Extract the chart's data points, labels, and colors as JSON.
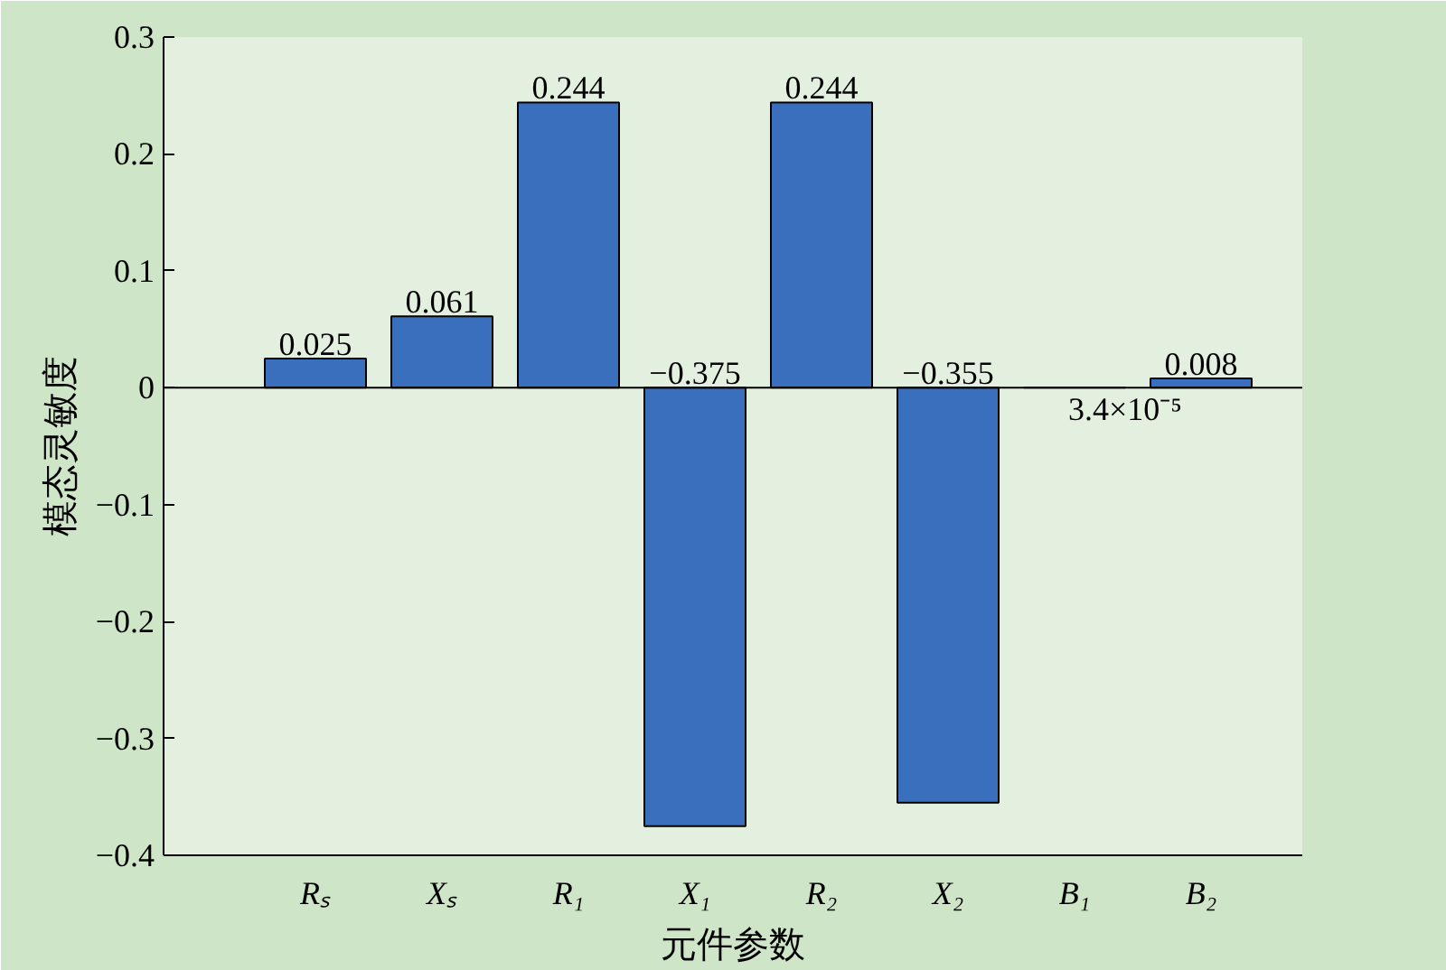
{
  "chart_data": {
    "type": "bar",
    "xlabel": "元件参数",
    "ylabel": "模态灵敏度",
    "categories": [
      "Rₛ",
      "Xₛ",
      "R₁",
      "X₁",
      "R₂",
      "X₂",
      "B₁",
      "B₂"
    ],
    "values": [
      0.025,
      0.061,
      0.244,
      -0.375,
      0.244,
      -0.355,
      3.4e-05,
      0.008
    ],
    "value_labels": [
      "0.025",
      "0.061",
      "0.244",
      "−0.375",
      "0.244",
      "−0.355",
      "3.4×10⁻⁵",
      "0.008"
    ],
    "color": "#3a6fbd",
    "ylim": [
      -0.4,
      0.3
    ],
    "yticks": [
      {
        "value": -0.4,
        "label": "−0.4"
      },
      {
        "value": -0.3,
        "label": "−0.3"
      },
      {
        "value": -0.2,
        "label": "−0.2"
      },
      {
        "value": -0.1,
        "label": "−0.1"
      },
      0,
      0.1,
      0.2,
      0.3
    ],
    "ref_lines": [
      {
        "axis": "y",
        "value": 0
      }
    ]
  }
}
